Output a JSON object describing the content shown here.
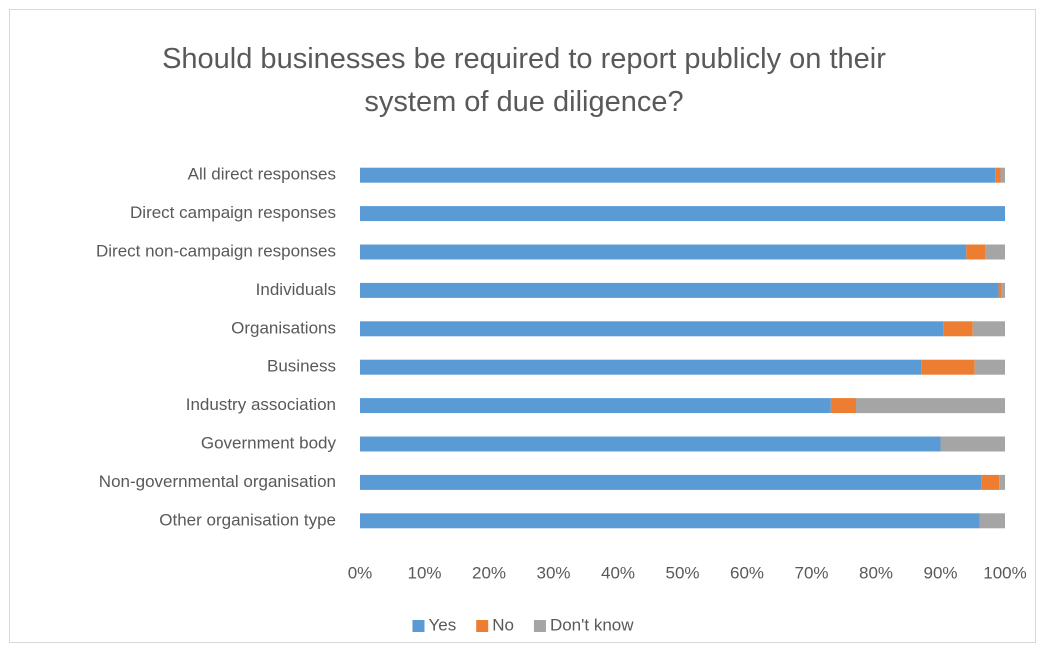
{
  "chart_data": {
    "type": "stacked-bar-horizontal",
    "title": "Should businesses be required to report publicly on their system of due diligence?",
    "categories": [
      "All direct responses",
      "Direct campaign responses",
      "Direct non-campaign responses",
      "Individuals",
      "Organisations",
      "Business",
      "Industry association",
      "Government body",
      "Non-governmental organisation",
      "Other organisation type"
    ],
    "series": [
      {
        "name": "Yes",
        "color": "#5b9bd5",
        "values": [
          98.5,
          100,
          94,
          99,
          90.5,
          87,
          73,
          90,
          96.3,
          96.1
        ]
      },
      {
        "name": "No",
        "color": "#ed7d31",
        "values": [
          0.8,
          0,
          3,
          0.5,
          4.5,
          8.3,
          3.9,
          0,
          2.8,
          0
        ]
      },
      {
        "name": "Don't know",
        "color": "#a5a5a5",
        "values": [
          0.7,
          0,
          3,
          0.5,
          5,
          4.7,
          23.1,
          10,
          0.9,
          3.9
        ]
      }
    ],
    "xlim": [
      0,
      100
    ],
    "xticks": [
      {
        "value": 0,
        "label": "0%"
      },
      {
        "value": 10,
        "label": "10%"
      },
      {
        "value": 20,
        "label": "20%"
      },
      {
        "value": 30,
        "label": "30%"
      },
      {
        "value": 40,
        "label": "40%"
      },
      {
        "value": 50,
        "label": "50%"
      },
      {
        "value": 60,
        "label": "60%"
      },
      {
        "value": 70,
        "label": "70%"
      },
      {
        "value": 80,
        "label": "80%"
      },
      {
        "value": 90,
        "label": "90%"
      },
      {
        "value": 100,
        "label": "100%"
      }
    ],
    "grid": false,
    "legend": "bottom"
  }
}
